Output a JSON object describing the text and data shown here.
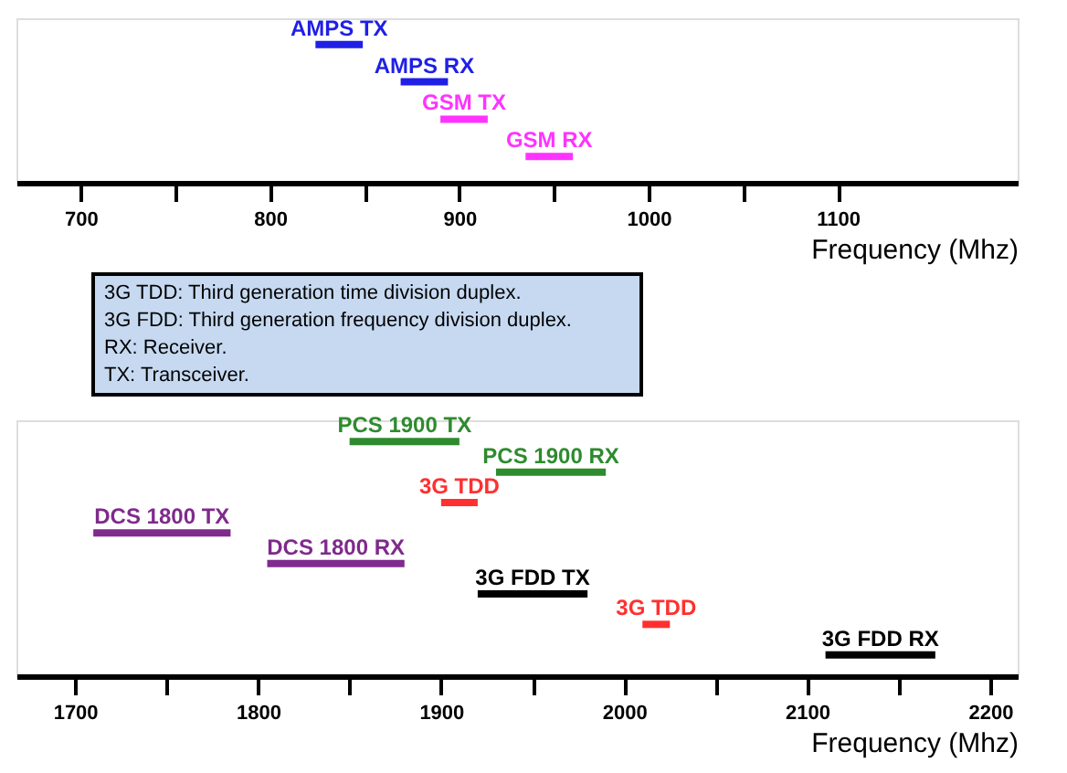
{
  "chart_data": [
    {
      "type": "bar",
      "orientation": "horizontal",
      "tick_labels": "x",
      "xlabel": "Frequency (Mhz)",
      "categories": [
        null,
        null,
        null,
        null
      ],
      "base": [
        824,
        869,
        890,
        935
      ],
      "values": [
        25,
        25,
        25,
        25
      ],
      "colors": [
        "#1f1fe6",
        "#1f1fe6",
        "#ff33ff",
        "#ff33ff"
      ],
      "xlim": [
        666,
        1195
      ],
      "xticks": [
        700,
        {
          "value": 750,
          "label": null
        },
        800,
        {
          "value": 850,
          "label": null
        },
        900,
        {
          "value": 950,
          "label": null
        },
        1000,
        {
          "value": 1050,
          "label": null
        },
        1100
      ],
      "annotations": [
        "AMPS TX",
        "AMPS RX",
        "GSM TX",
        "GSM RX",
        "3G TDD: Third generation time division duplex.",
        "3G FDD: Third generation frequency division duplex.",
        "RX: Receiver.",
        "TX: Transceiver."
      ]
    },
    {
      "type": "bar",
      "orientation": "horizontal",
      "tick_labels": "x",
      "xlabel": "Frequency (Mhz)",
      "categories": [
        null,
        null,
        null,
        null,
        null,
        null,
        null,
        null
      ],
      "base": [
        1850,
        1930,
        1900,
        1710,
        1805,
        1920,
        2010,
        2110
      ],
      "values": [
        60,
        60,
        20,
        75,
        75,
        60,
        15,
        60
      ],
      "colors": [
        "#2e8b2e",
        "#2e8b2e",
        "#ff3030",
        "#7f2a8c",
        "#7f2a8c",
        "#000000",
        "#ff3030",
        "#000000"
      ],
      "xlim": [
        1668,
        2215
      ],
      "xticks": [
        1700,
        {
          "value": 1750,
          "label": null
        },
        1800,
        {
          "value": 1850,
          "label": null
        },
        1900,
        {
          "value": 1950,
          "label": null
        },
        2000,
        {
          "value": 2050,
          "label": null
        },
        2100,
        {
          "value": 2150,
          "label": null
        },
        2200
      ],
      "annotations": [
        "PCS 1900 TX",
        "PCS 1900 RX",
        "3G TDD",
        "DCS 1800 TX",
        "DCS 1800 RX",
        "3G FDD TX",
        "3G TDD",
        "3G FDD RX"
      ]
    }
  ]
}
